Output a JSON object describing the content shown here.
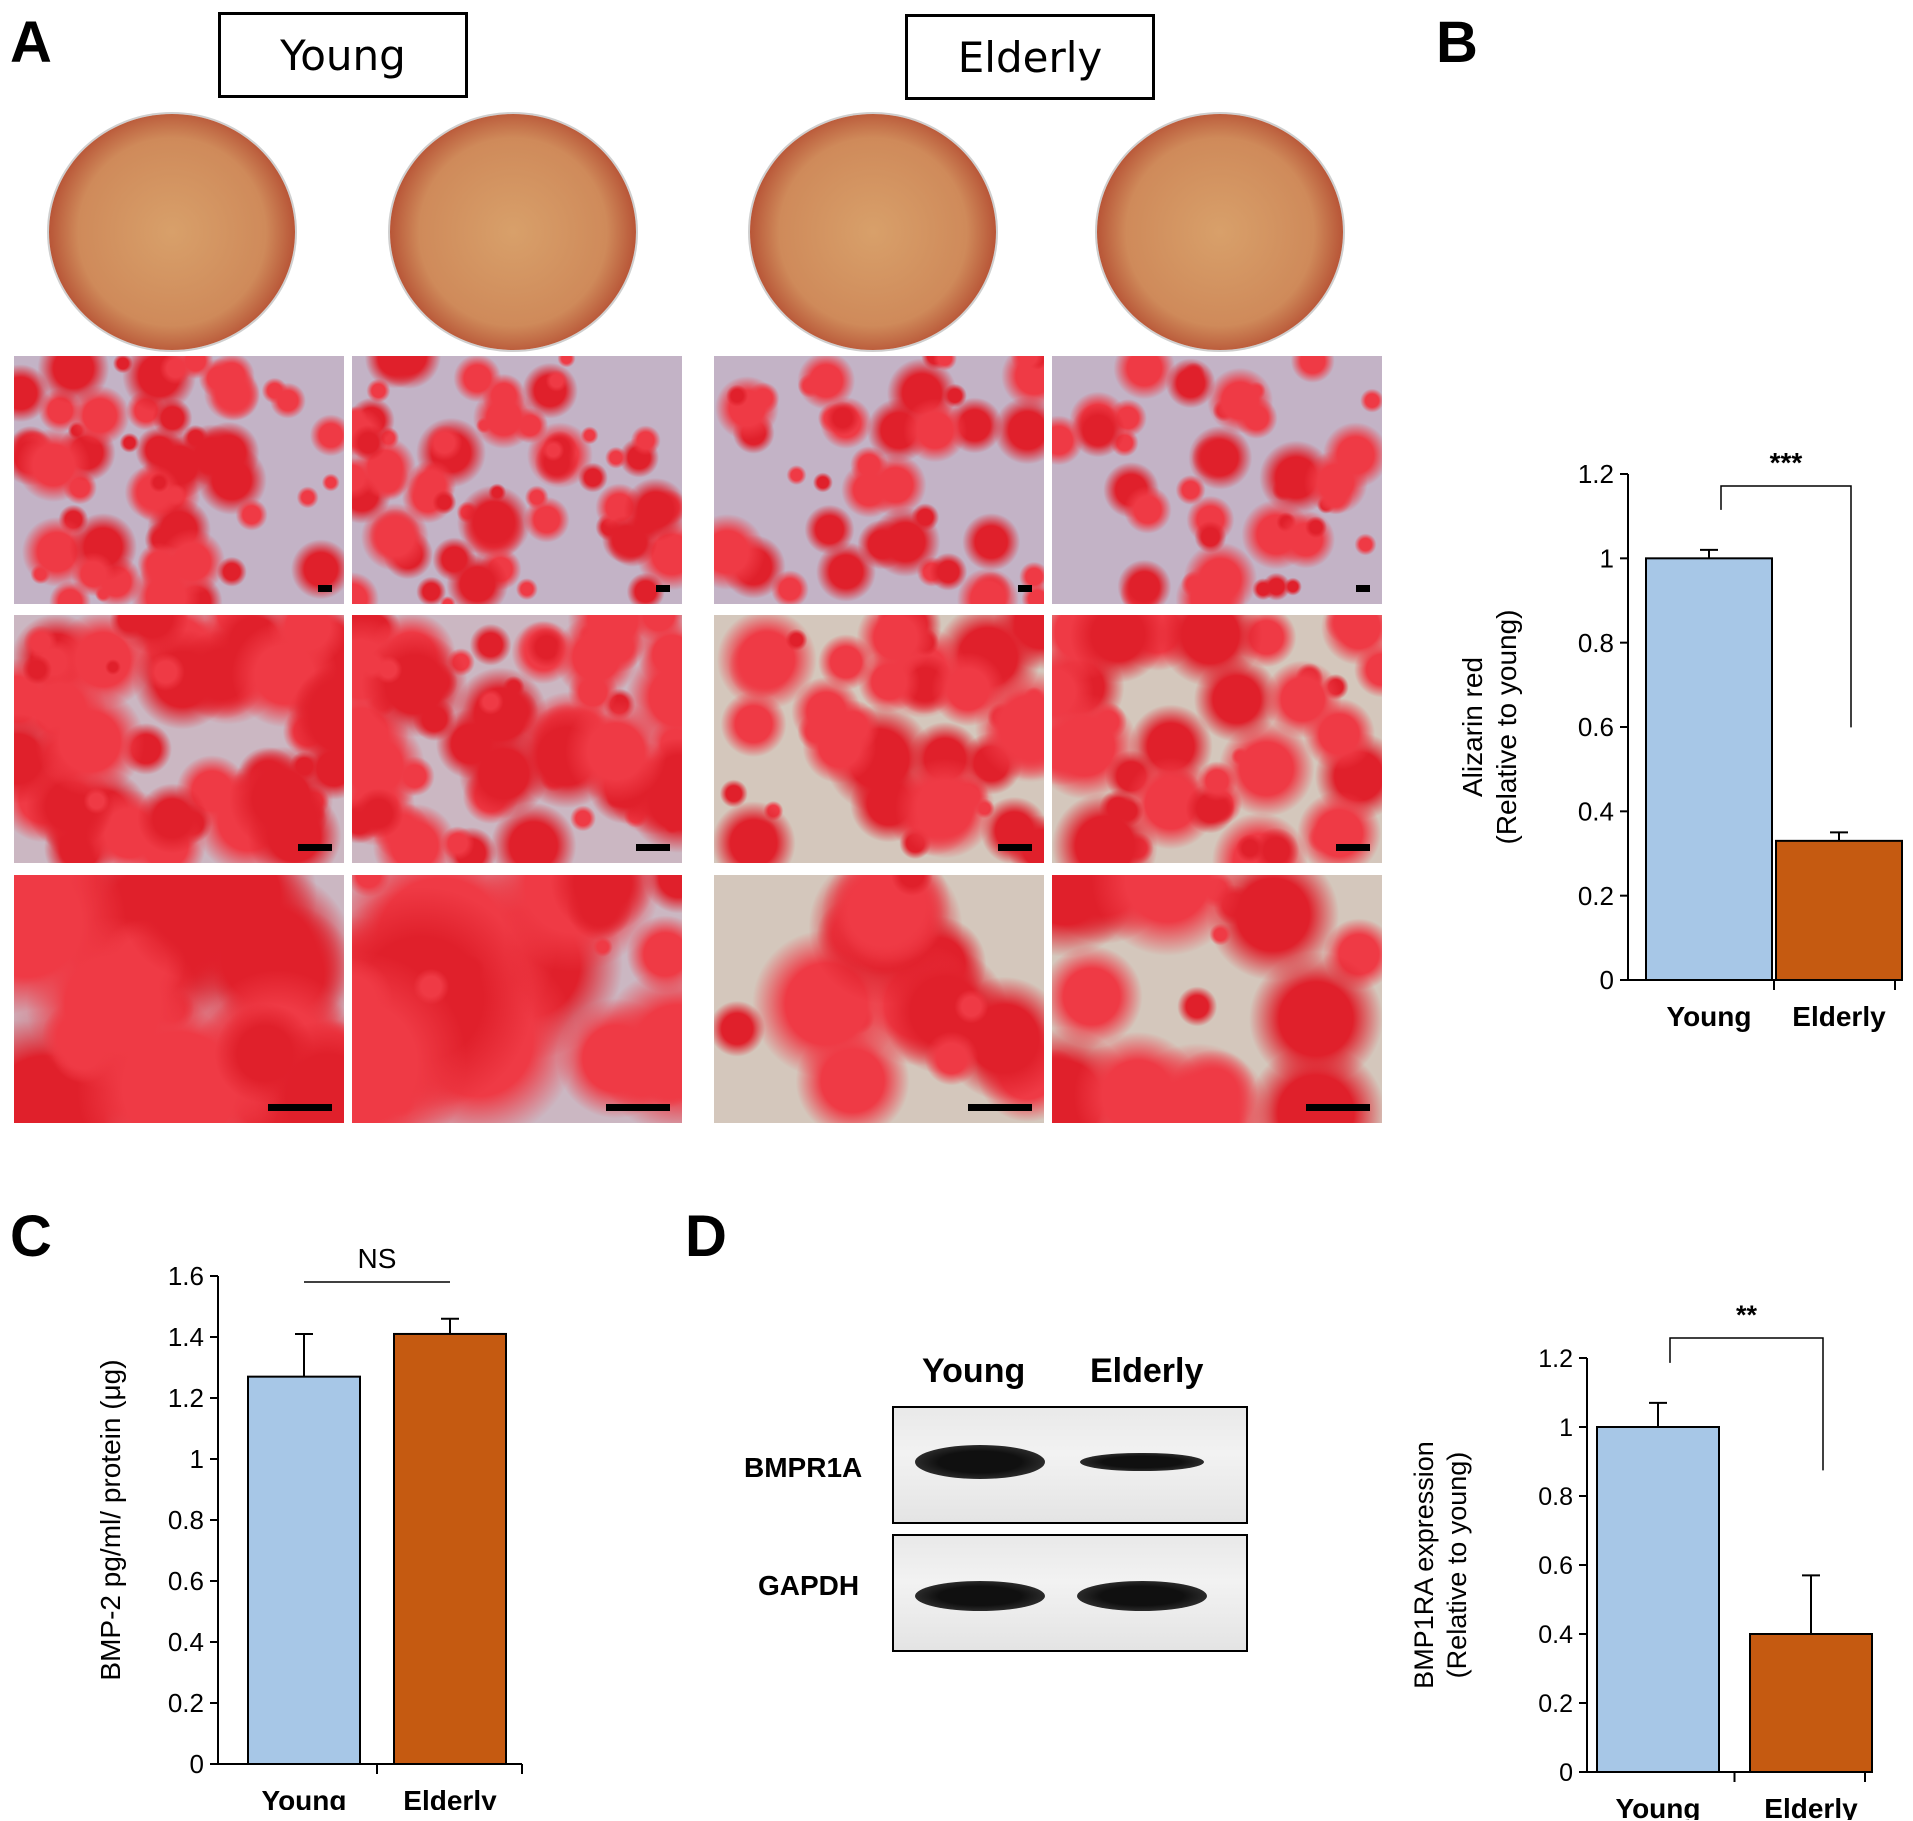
{
  "panels": {
    "A": {
      "letter": "A",
      "groups": [
        "Young",
        "Elderly"
      ]
    },
    "B": {
      "letter": "B"
    },
    "C": {
      "letter": "C"
    },
    "D": {
      "letter": "D",
      "blot": {
        "columns": [
          "Young",
          "Elderly"
        ],
        "rows": [
          "BMPR1A",
          "GAPDH"
        ],
        "band_intensity": {
          "BMPR1A": [
            1.0,
            0.55
          ],
          "GAPDH": [
            1.0,
            1.0
          ]
        }
      }
    }
  },
  "colors": {
    "young": "#a7c7e7",
    "elderly": "#c55a11",
    "stain_red": "#e0202b",
    "cell_background": "#c9b6c4"
  },
  "chart_data": [
    {
      "panel": "B",
      "type": "bar",
      "categories": [
        "Young",
        "Elderly"
      ],
      "values": [
        1.0,
        0.33
      ],
      "errors": [
        0.02,
        0.02
      ],
      "ylabel": [
        "Alizarin red",
        "(Relative to young)"
      ],
      "ylim": [
        0,
        1.2
      ],
      "yticks": [
        "0",
        "0.2",
        "0.4",
        "0.6",
        "0.8",
        "1",
        "1.2"
      ],
      "significance": "***",
      "colors": [
        "#a7c7e7",
        "#c55a11"
      ]
    },
    {
      "panel": "C",
      "type": "bar",
      "categories": [
        "Young",
        "Elderly"
      ],
      "values": [
        1.27,
        1.41
      ],
      "errors": [
        0.14,
        0.05
      ],
      "ylabel": [
        "BMP-2 pg/ml/ protein (μg)"
      ],
      "ylim": [
        0,
        1.6
      ],
      "yticks": [
        "0",
        "0.2",
        "0.4",
        "0.6",
        "0.8",
        "1",
        "1.2",
        "1.4",
        "1.6"
      ],
      "significance": "NS",
      "colors": [
        "#a7c7e7",
        "#c55a11"
      ]
    },
    {
      "panel": "D",
      "type": "bar",
      "categories": [
        "Young",
        "Elderly"
      ],
      "values": [
        1.0,
        0.4
      ],
      "errors": [
        0.07,
        0.17
      ],
      "ylabel": [
        "BMP1RA expression",
        "(Relative to young)"
      ],
      "ylim": [
        0,
        1.2
      ],
      "yticks": [
        "0",
        "0.2",
        "0.4",
        "0.6",
        "0.8",
        "1",
        "1.2"
      ],
      "significance": "**",
      "colors": [
        "#a7c7e7",
        "#c55a11"
      ]
    }
  ]
}
